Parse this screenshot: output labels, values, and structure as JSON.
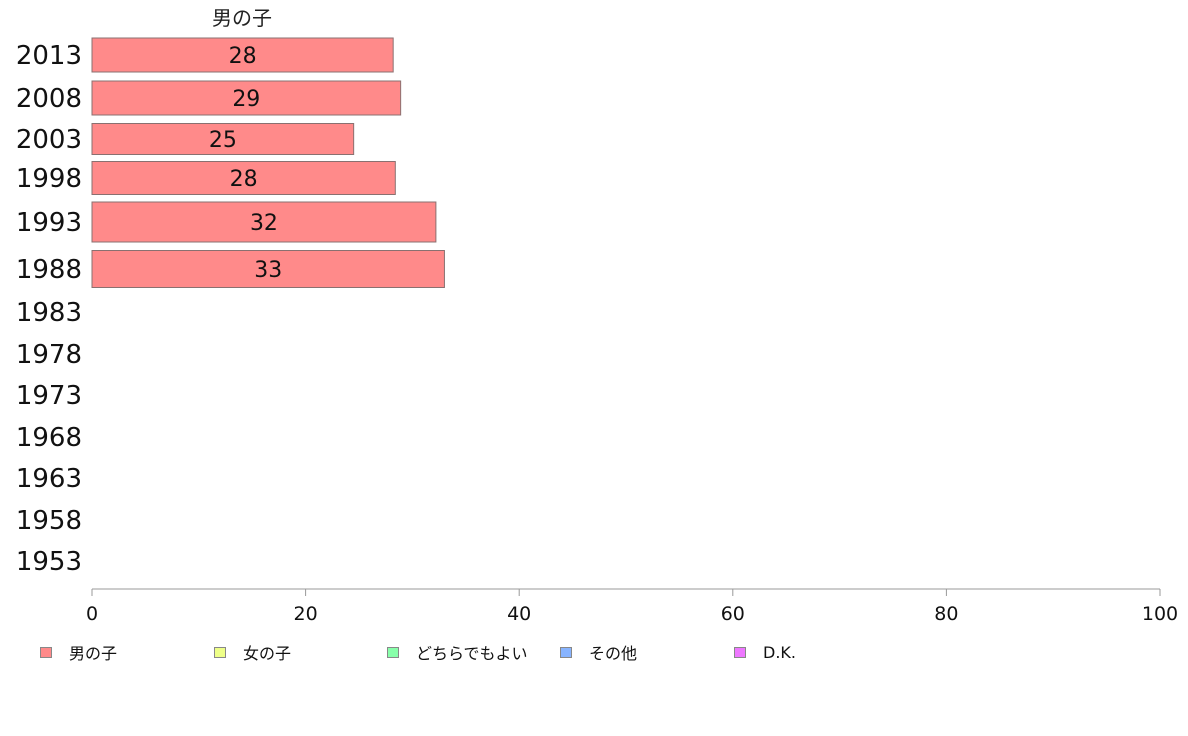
{
  "chart_data": {
    "type": "bar",
    "orientation": "horizontal",
    "categories": [
      "2013",
      "2008",
      "2003",
      "1998",
      "1993",
      "1988",
      "1983",
      "1978",
      "1973",
      "1968",
      "1963",
      "1958",
      "1953"
    ],
    "series": [
      {
        "name": "男の子",
        "values": [
          28.2,
          28.9,
          24.5,
          28.4,
          32.2,
          33.0,
          null,
          null,
          null,
          null,
          null,
          null,
          null
        ],
        "labels": [
          "28",
          "29",
          "25",
          "28",
          "32",
          "33",
          "",
          "",
          "",
          "",
          "",
          "",
          ""
        ],
        "color": "#ff8a8a"
      }
    ],
    "column_title": "男の子",
    "xlim": [
      0,
      100
    ],
    "xticks": [
      "0",
      "20",
      "40",
      "60",
      "80",
      "100"
    ],
    "legend": [
      {
        "label": "男の子",
        "color": "#ff8a8a"
      },
      {
        "label": "女の子",
        "color": "#eeff88"
      },
      {
        "label": "どちらでもよい",
        "color": "#88ffaa"
      },
      {
        "label": "その他",
        "color": "#88b4ff"
      },
      {
        "label": "D.K.",
        "color": "#ee77ff"
      }
    ],
    "legend_position": "bottom",
    "grid": false
  }
}
